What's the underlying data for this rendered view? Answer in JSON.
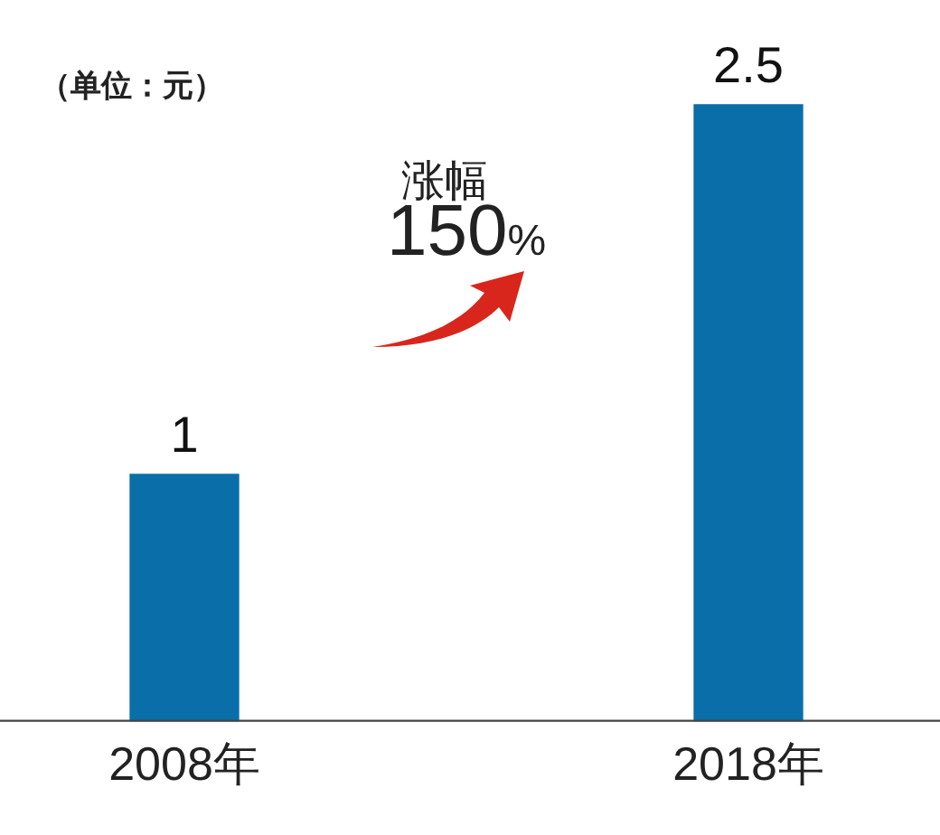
{
  "chart_data": {
    "type": "bar",
    "categories": [
      "2008年",
      "2018年"
    ],
    "values": [
      1,
      2.5
    ],
    "color": "#0a6ea8",
    "ylim": [
      0,
      2.5
    ],
    "tick_labels": "x",
    "grid": false,
    "legend": false,
    "data_labels": true,
    "annotations": [
      "（单位：元）",
      "涨幅",
      "150%"
    ]
  }
}
